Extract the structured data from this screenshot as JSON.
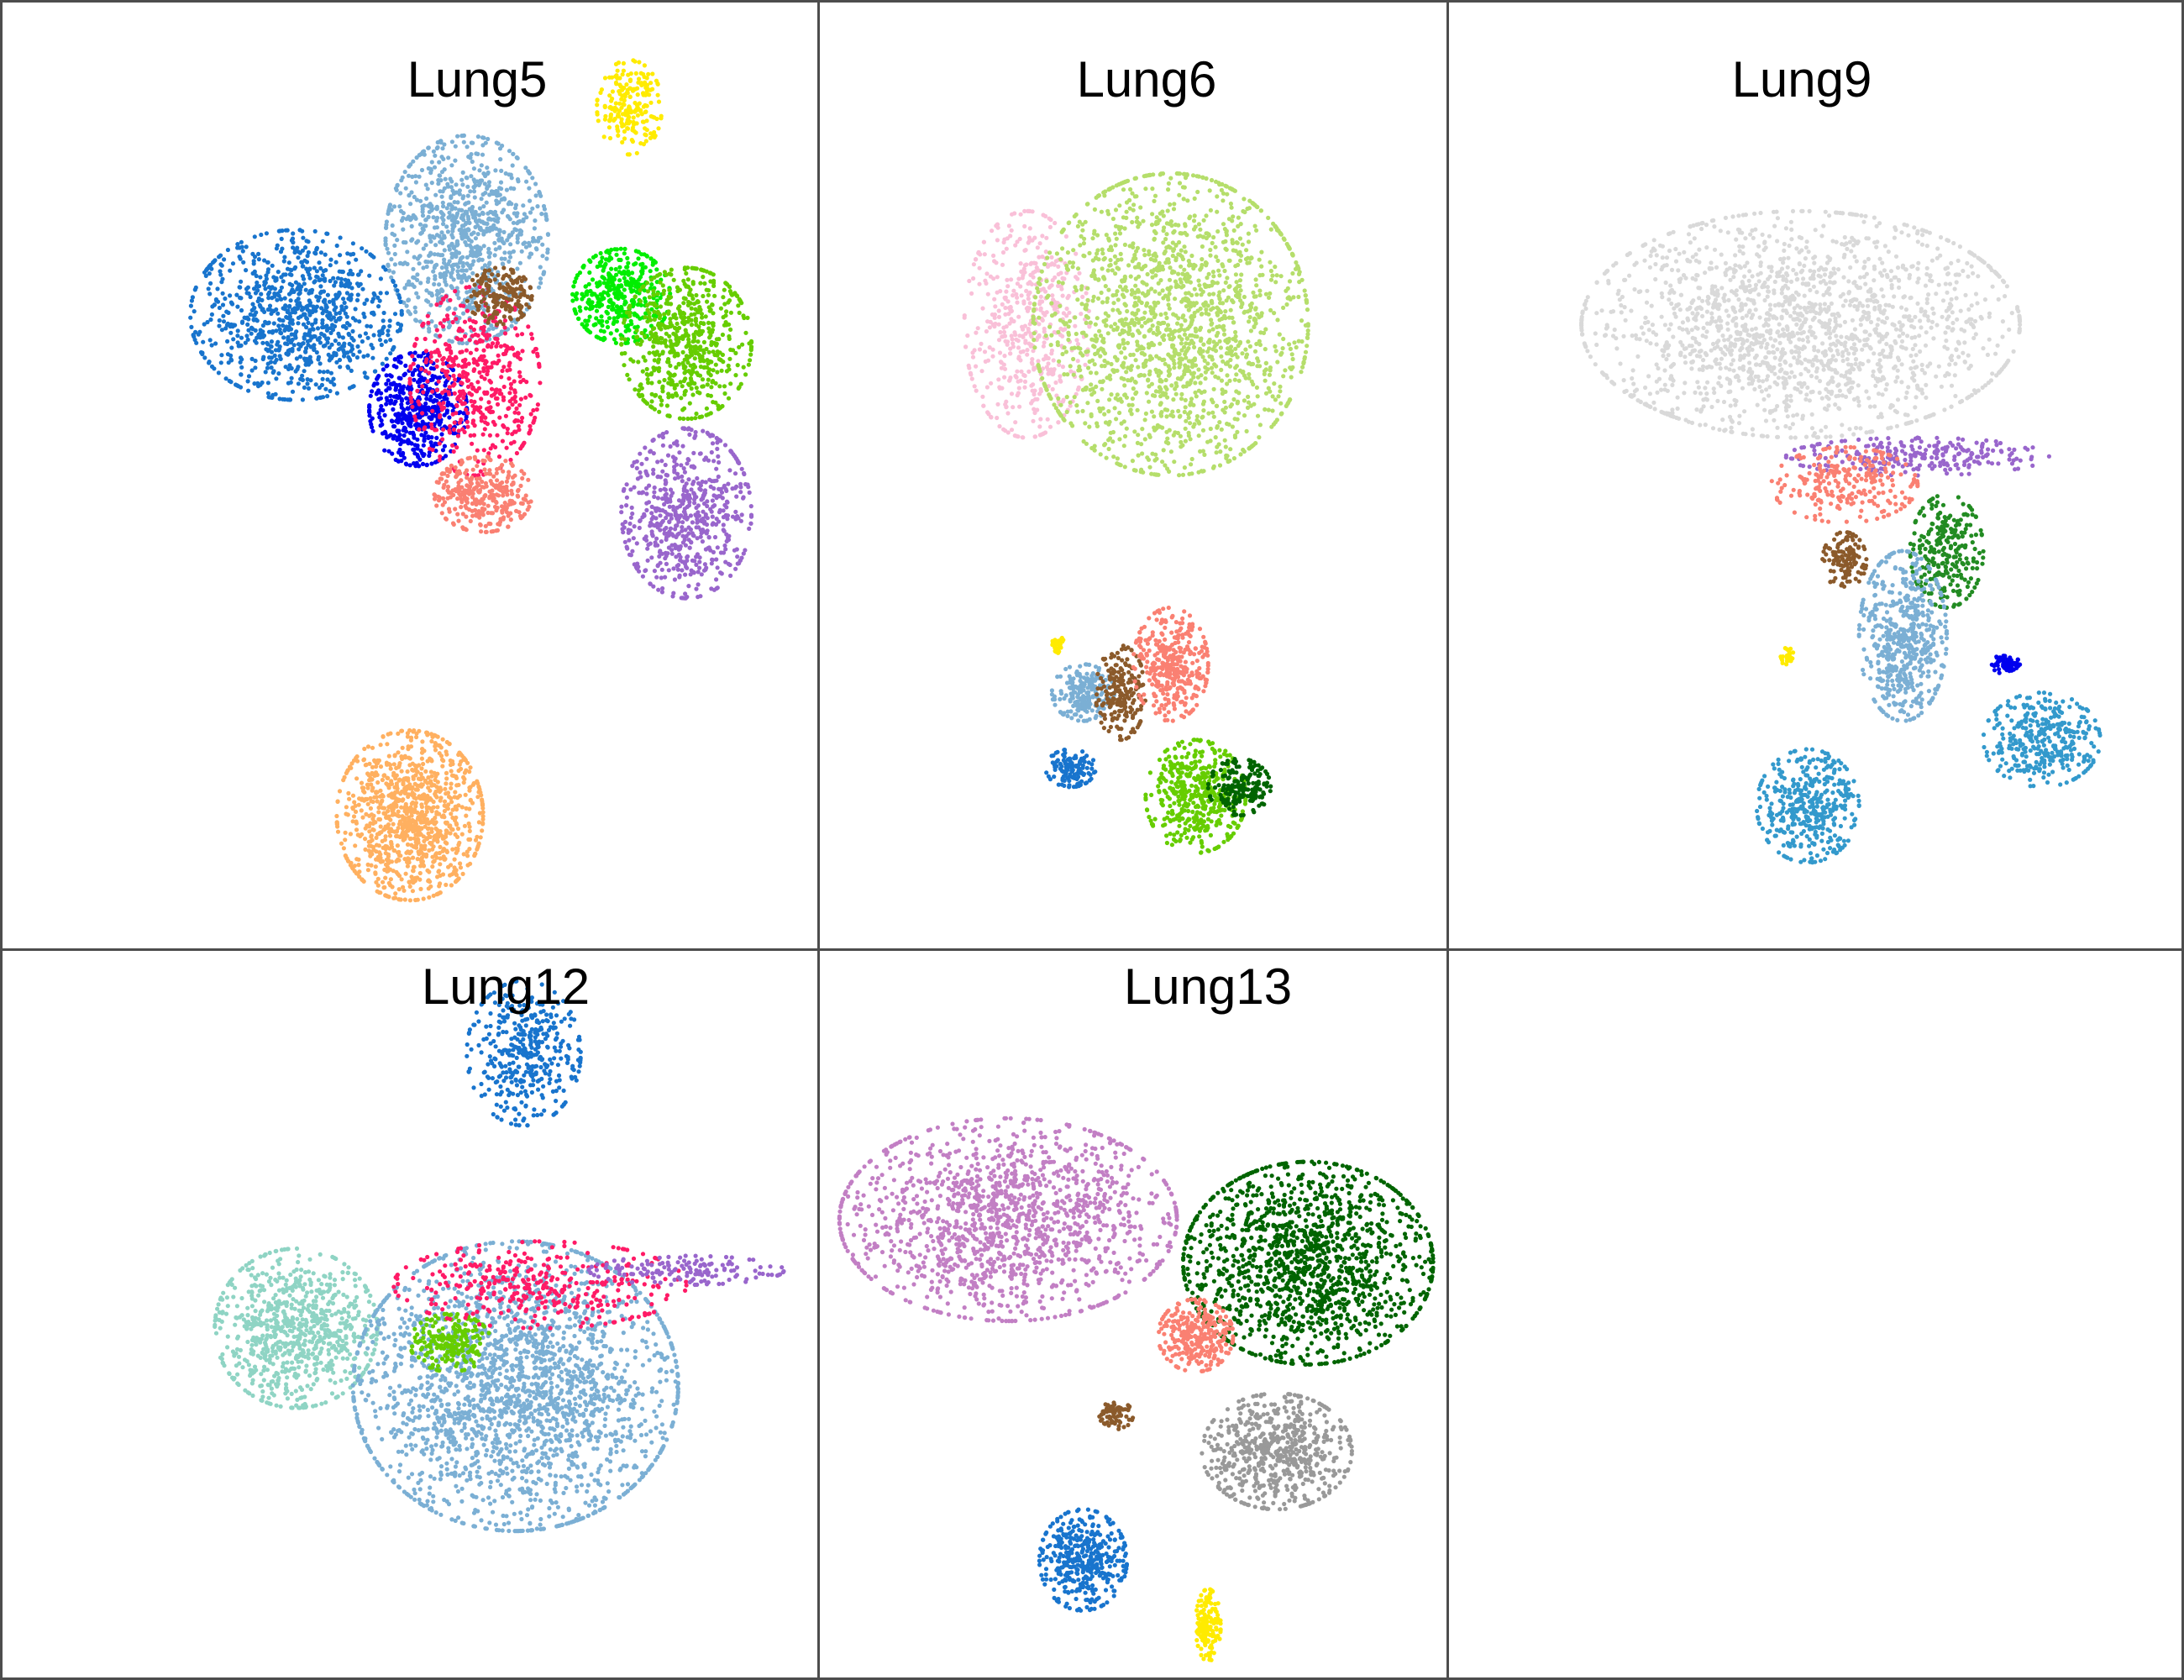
{
  "chart_data": [
    {
      "type": "scatter",
      "title": "Lung5",
      "xlabel": "",
      "ylabel": "",
      "grid": false,
      "axes": false,
      "legend": "none",
      "clusters": [
        {
          "color": "#ffeb00",
          "points": 220,
          "cx": 0.77,
          "cy": 0.11,
          "rx": 0.04,
          "ry": 0.05
        },
        {
          "color": "#7bafd4",
          "points": 900,
          "cx": 0.57,
          "cy": 0.25,
          "rx": 0.1,
          "ry": 0.11
        },
        {
          "color": "#1874cd",
          "points": 900,
          "cx": 0.36,
          "cy": 0.33,
          "rx": 0.13,
          "ry": 0.09
        },
        {
          "color": "#0000ee",
          "points": 500,
          "cx": 0.51,
          "cy": 0.43,
          "rx": 0.06,
          "ry": 0.06
        },
        {
          "color": "#ff1a66",
          "points": 500,
          "cx": 0.58,
          "cy": 0.4,
          "rx": 0.08,
          "ry": 0.1
        },
        {
          "color": "#8b5a2b",
          "points": 180,
          "cx": 0.61,
          "cy": 0.31,
          "rx": 0.04,
          "ry": 0.03
        },
        {
          "color": "#00ee00",
          "points": 400,
          "cx": 0.76,
          "cy": 0.31,
          "rx": 0.06,
          "ry": 0.05
        },
        {
          "color": "#66cd00",
          "points": 600,
          "cx": 0.84,
          "cy": 0.36,
          "rx": 0.08,
          "ry": 0.08
        },
        {
          "color": "#9966cc",
          "points": 600,
          "cx": 0.84,
          "cy": 0.54,
          "rx": 0.08,
          "ry": 0.09
        },
        {
          "color": "#fa8072",
          "points": 300,
          "cx": 0.59,
          "cy": 0.52,
          "rx": 0.06,
          "ry": 0.04
        },
        {
          "color": "#ffb060",
          "points": 1000,
          "cx": 0.5,
          "cy": 0.86,
          "rx": 0.09,
          "ry": 0.09
        }
      ]
    },
    {
      "type": "scatter",
      "title": "Lung6",
      "xlabel": "",
      "ylabel": "",
      "grid": false,
      "axes": false,
      "legend": "none",
      "clusters": [
        {
          "color": "#f9c0d8",
          "points": 500,
          "cx": 0.33,
          "cy": 0.34,
          "rx": 0.1,
          "ry": 0.12
        },
        {
          "color": "#b5de6b",
          "points": 1700,
          "cx": 0.56,
          "cy": 0.34,
          "rx": 0.22,
          "ry": 0.16
        },
        {
          "color": "#7bafd4",
          "points": 200,
          "cx": 0.42,
          "cy": 0.73,
          "rx": 0.05,
          "ry": 0.03
        },
        {
          "color": "#8b5a2b",
          "points": 200,
          "cx": 0.48,
          "cy": 0.73,
          "rx": 0.04,
          "ry": 0.05
        },
        {
          "color": "#fa8072",
          "points": 350,
          "cx": 0.56,
          "cy": 0.7,
          "rx": 0.06,
          "ry": 0.06
        },
        {
          "color": "#66cd00",
          "points": 450,
          "cx": 0.6,
          "cy": 0.84,
          "rx": 0.08,
          "ry": 0.06
        },
        {
          "color": "#006400",
          "points": 180,
          "cx": 0.67,
          "cy": 0.83,
          "rx": 0.05,
          "ry": 0.03
        },
        {
          "color": "#1874cd",
          "points": 120,
          "cx": 0.4,
          "cy": 0.81,
          "rx": 0.04,
          "ry": 0.02
        },
        {
          "color": "#ffeb00",
          "points": 30,
          "cx": 0.38,
          "cy": 0.68,
          "rx": 0.01,
          "ry": 0.01
        }
      ]
    },
    {
      "type": "scatter",
      "title": "Lung9",
      "xlabel": "",
      "ylabel": "",
      "grid": false,
      "axes": false,
      "legend": "none",
      "clusters": [
        {
          "color": "#d9d9d9",
          "points": 1800,
          "cx": 0.48,
          "cy": 0.34,
          "rx": 0.3,
          "ry": 0.12
        },
        {
          "color": "#9966cc",
          "points": 250,
          "cx": 0.64,
          "cy": 0.48,
          "rx": 0.18,
          "ry": 0.02
        },
        {
          "color": "#fa8072",
          "points": 250,
          "cx": 0.54,
          "cy": 0.51,
          "rx": 0.1,
          "ry": 0.04
        },
        {
          "color": "#228b22",
          "points": 250,
          "cx": 0.68,
          "cy": 0.58,
          "rx": 0.05,
          "ry": 0.06
        },
        {
          "color": "#8b5a2b",
          "points": 120,
          "cx": 0.54,
          "cy": 0.59,
          "rx": 0.03,
          "ry": 0.03
        },
        {
          "color": "#7bafd4",
          "points": 550,
          "cx": 0.62,
          "cy": 0.67,
          "rx": 0.06,
          "ry": 0.09
        },
        {
          "color": "#3399cc",
          "points": 400,
          "cx": 0.49,
          "cy": 0.85,
          "rx": 0.07,
          "ry": 0.06
        },
        {
          "color": "#3399cc",
          "points": 350,
          "cx": 0.81,
          "cy": 0.78,
          "rx": 0.08,
          "ry": 0.05
        },
        {
          "color": "#0000ee",
          "points": 60,
          "cx": 0.76,
          "cy": 0.7,
          "rx": 0.02,
          "ry": 0.01
        },
        {
          "color": "#ffeb00",
          "points": 25,
          "cx": 0.46,
          "cy": 0.69,
          "rx": 0.01,
          "ry": 0.01
        }
      ]
    },
    {
      "type": "scatter",
      "title": "Lung12",
      "xlabel": "",
      "ylabel": "",
      "grid": false,
      "axes": false,
      "legend": "none",
      "clusters": [
        {
          "color": "#1874cd",
          "points": 400,
          "cx": 0.64,
          "cy": 0.14,
          "rx": 0.07,
          "ry": 0.1
        },
        {
          "color": "#8fd4c4",
          "points": 800,
          "cx": 0.36,
          "cy": 0.52,
          "rx": 0.1,
          "ry": 0.11
        },
        {
          "color": "#7bafd4",
          "points": 2200,
          "cx": 0.63,
          "cy": 0.6,
          "rx": 0.2,
          "ry": 0.2
        },
        {
          "color": "#66cd00",
          "points": 200,
          "cx": 0.55,
          "cy": 0.54,
          "rx": 0.05,
          "ry": 0.04
        },
        {
          "color": "#ff1a66",
          "points": 350,
          "cx": 0.66,
          "cy": 0.46,
          "rx": 0.18,
          "ry": 0.06
        },
        {
          "color": "#9966cc",
          "points": 150,
          "cx": 0.84,
          "cy": 0.44,
          "rx": 0.12,
          "ry": 0.02
        }
      ]
    },
    {
      "type": "scatter",
      "title": "Lung13",
      "xlabel": "",
      "ylabel": "",
      "grid": false,
      "axes": false,
      "legend": "none",
      "clusters": [
        {
          "color": "#c27fc4",
          "points": 1400,
          "cx": 0.3,
          "cy": 0.37,
          "rx": 0.27,
          "ry": 0.14
        },
        {
          "color": "#006400",
          "points": 1400,
          "cx": 0.78,
          "cy": 0.43,
          "rx": 0.2,
          "ry": 0.14
        },
        {
          "color": "#fa8072",
          "points": 300,
          "cx": 0.6,
          "cy": 0.53,
          "rx": 0.06,
          "ry": 0.05
        },
        {
          "color": "#999999",
          "points": 600,
          "cx": 0.73,
          "cy": 0.69,
          "rx": 0.12,
          "ry": 0.08
        },
        {
          "color": "#8b5a2b",
          "points": 70,
          "cx": 0.47,
          "cy": 0.64,
          "rx": 0.03,
          "ry": 0.02
        },
        {
          "color": "#1874cd",
          "points": 400,
          "cx": 0.42,
          "cy": 0.84,
          "rx": 0.07,
          "ry": 0.07
        },
        {
          "color": "#ffeb00",
          "points": 150,
          "cx": 0.62,
          "cy": 0.93,
          "rx": 0.02,
          "ry": 0.05
        }
      ]
    }
  ]
}
